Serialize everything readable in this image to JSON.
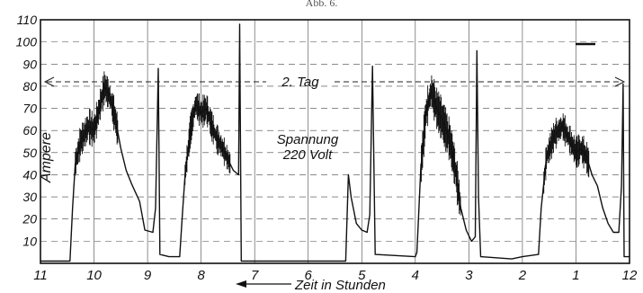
{
  "caption": "Abb. 6.",
  "chart_data": {
    "type": "line",
    "ylabel": "Ampere",
    "xlabel": "Zeit in Stunden",
    "ylim": [
      0,
      110
    ],
    "yticks": [
      10,
      20,
      30,
      40,
      50,
      60,
      70,
      80,
      90,
      100,
      110
    ],
    "xtick_labels": [
      "11",
      "10",
      "9",
      "8",
      "7",
      "6",
      "5",
      "4",
      "3",
      "2",
      "1",
      "12"
    ],
    "x_direction": "reversed",
    "grid": true,
    "annotations": {
      "day": "2. Tag",
      "voltage_line1": "Spannung",
      "voltage_line2": "220 Volt"
    },
    "series": [
      {
        "points": [
          [
            11.0,
            1
          ],
          [
            10.45,
            1
          ],
          [
            10.4,
            25
          ],
          [
            10.35,
            45
          ],
          [
            10.25,
            55
          ],
          [
            10.1,
            62
          ],
          [
            10.0,
            60
          ],
          [
            9.9,
            70
          ],
          [
            9.8,
            80
          ],
          [
            9.7,
            75
          ],
          [
            9.6,
            65
          ],
          [
            9.5,
            52
          ],
          [
            9.4,
            42
          ],
          [
            9.3,
            36
          ],
          [
            9.15,
            28
          ],
          [
            9.05,
            15
          ],
          [
            8.9,
            14
          ],
          [
            8.85,
            25
          ],
          [
            8.8,
            88
          ],
          [
            8.77,
            4
          ],
          [
            8.6,
            3
          ],
          [
            8.4,
            3
          ],
          [
            8.35,
            22
          ],
          [
            8.3,
            40
          ],
          [
            8.2,
            60
          ],
          [
            8.1,
            72
          ],
          [
            8.0,
            68
          ],
          [
            7.9,
            70
          ],
          [
            7.8,
            62
          ],
          [
            7.7,
            56
          ],
          [
            7.6,
            52
          ],
          [
            7.5,
            47
          ],
          [
            7.4,
            42
          ],
          [
            7.3,
            40
          ],
          [
            7.28,
            108
          ],
          [
            7.25,
            1
          ],
          [
            6.0,
            1
          ],
          [
            5.3,
            1
          ],
          [
            5.25,
            40
          ],
          [
            5.2,
            30
          ],
          [
            5.1,
            18
          ],
          [
            5.0,
            15
          ],
          [
            4.9,
            14
          ],
          [
            4.85,
            22
          ],
          [
            4.8,
            89
          ],
          [
            4.75,
            4
          ],
          [
            4.0,
            3
          ],
          [
            3.97,
            5
          ],
          [
            3.9,
            42
          ],
          [
            3.8,
            68
          ],
          [
            3.7,
            78
          ],
          [
            3.6,
            70
          ],
          [
            3.5,
            65
          ],
          [
            3.35,
            55
          ],
          [
            3.25,
            42
          ],
          [
            3.15,
            25
          ],
          [
            3.05,
            15
          ],
          [
            2.95,
            10
          ],
          [
            2.88,
            12
          ],
          [
            2.85,
            96
          ],
          [
            2.82,
            30
          ],
          [
            2.78,
            3
          ],
          [
            2.2,
            2
          ],
          [
            2.0,
            3
          ],
          [
            1.7,
            4
          ],
          [
            1.65,
            25
          ],
          [
            1.55,
            48
          ],
          [
            1.4,
            58
          ],
          [
            1.25,
            62
          ],
          [
            1.1,
            55
          ],
          [
            1.0,
            50
          ],
          [
            0.9,
            52
          ],
          [
            0.8,
            48
          ],
          [
            0.7,
            40
          ],
          [
            0.6,
            35
          ],
          [
            0.5,
            25
          ],
          [
            0.4,
            18
          ],
          [
            0.3,
            14
          ],
          [
            0.2,
            14
          ],
          [
            0.15,
            35
          ],
          [
            0.12,
            81
          ],
          [
            0.1,
            3
          ],
          [
            0.0,
            3
          ]
        ]
      }
    ]
  }
}
